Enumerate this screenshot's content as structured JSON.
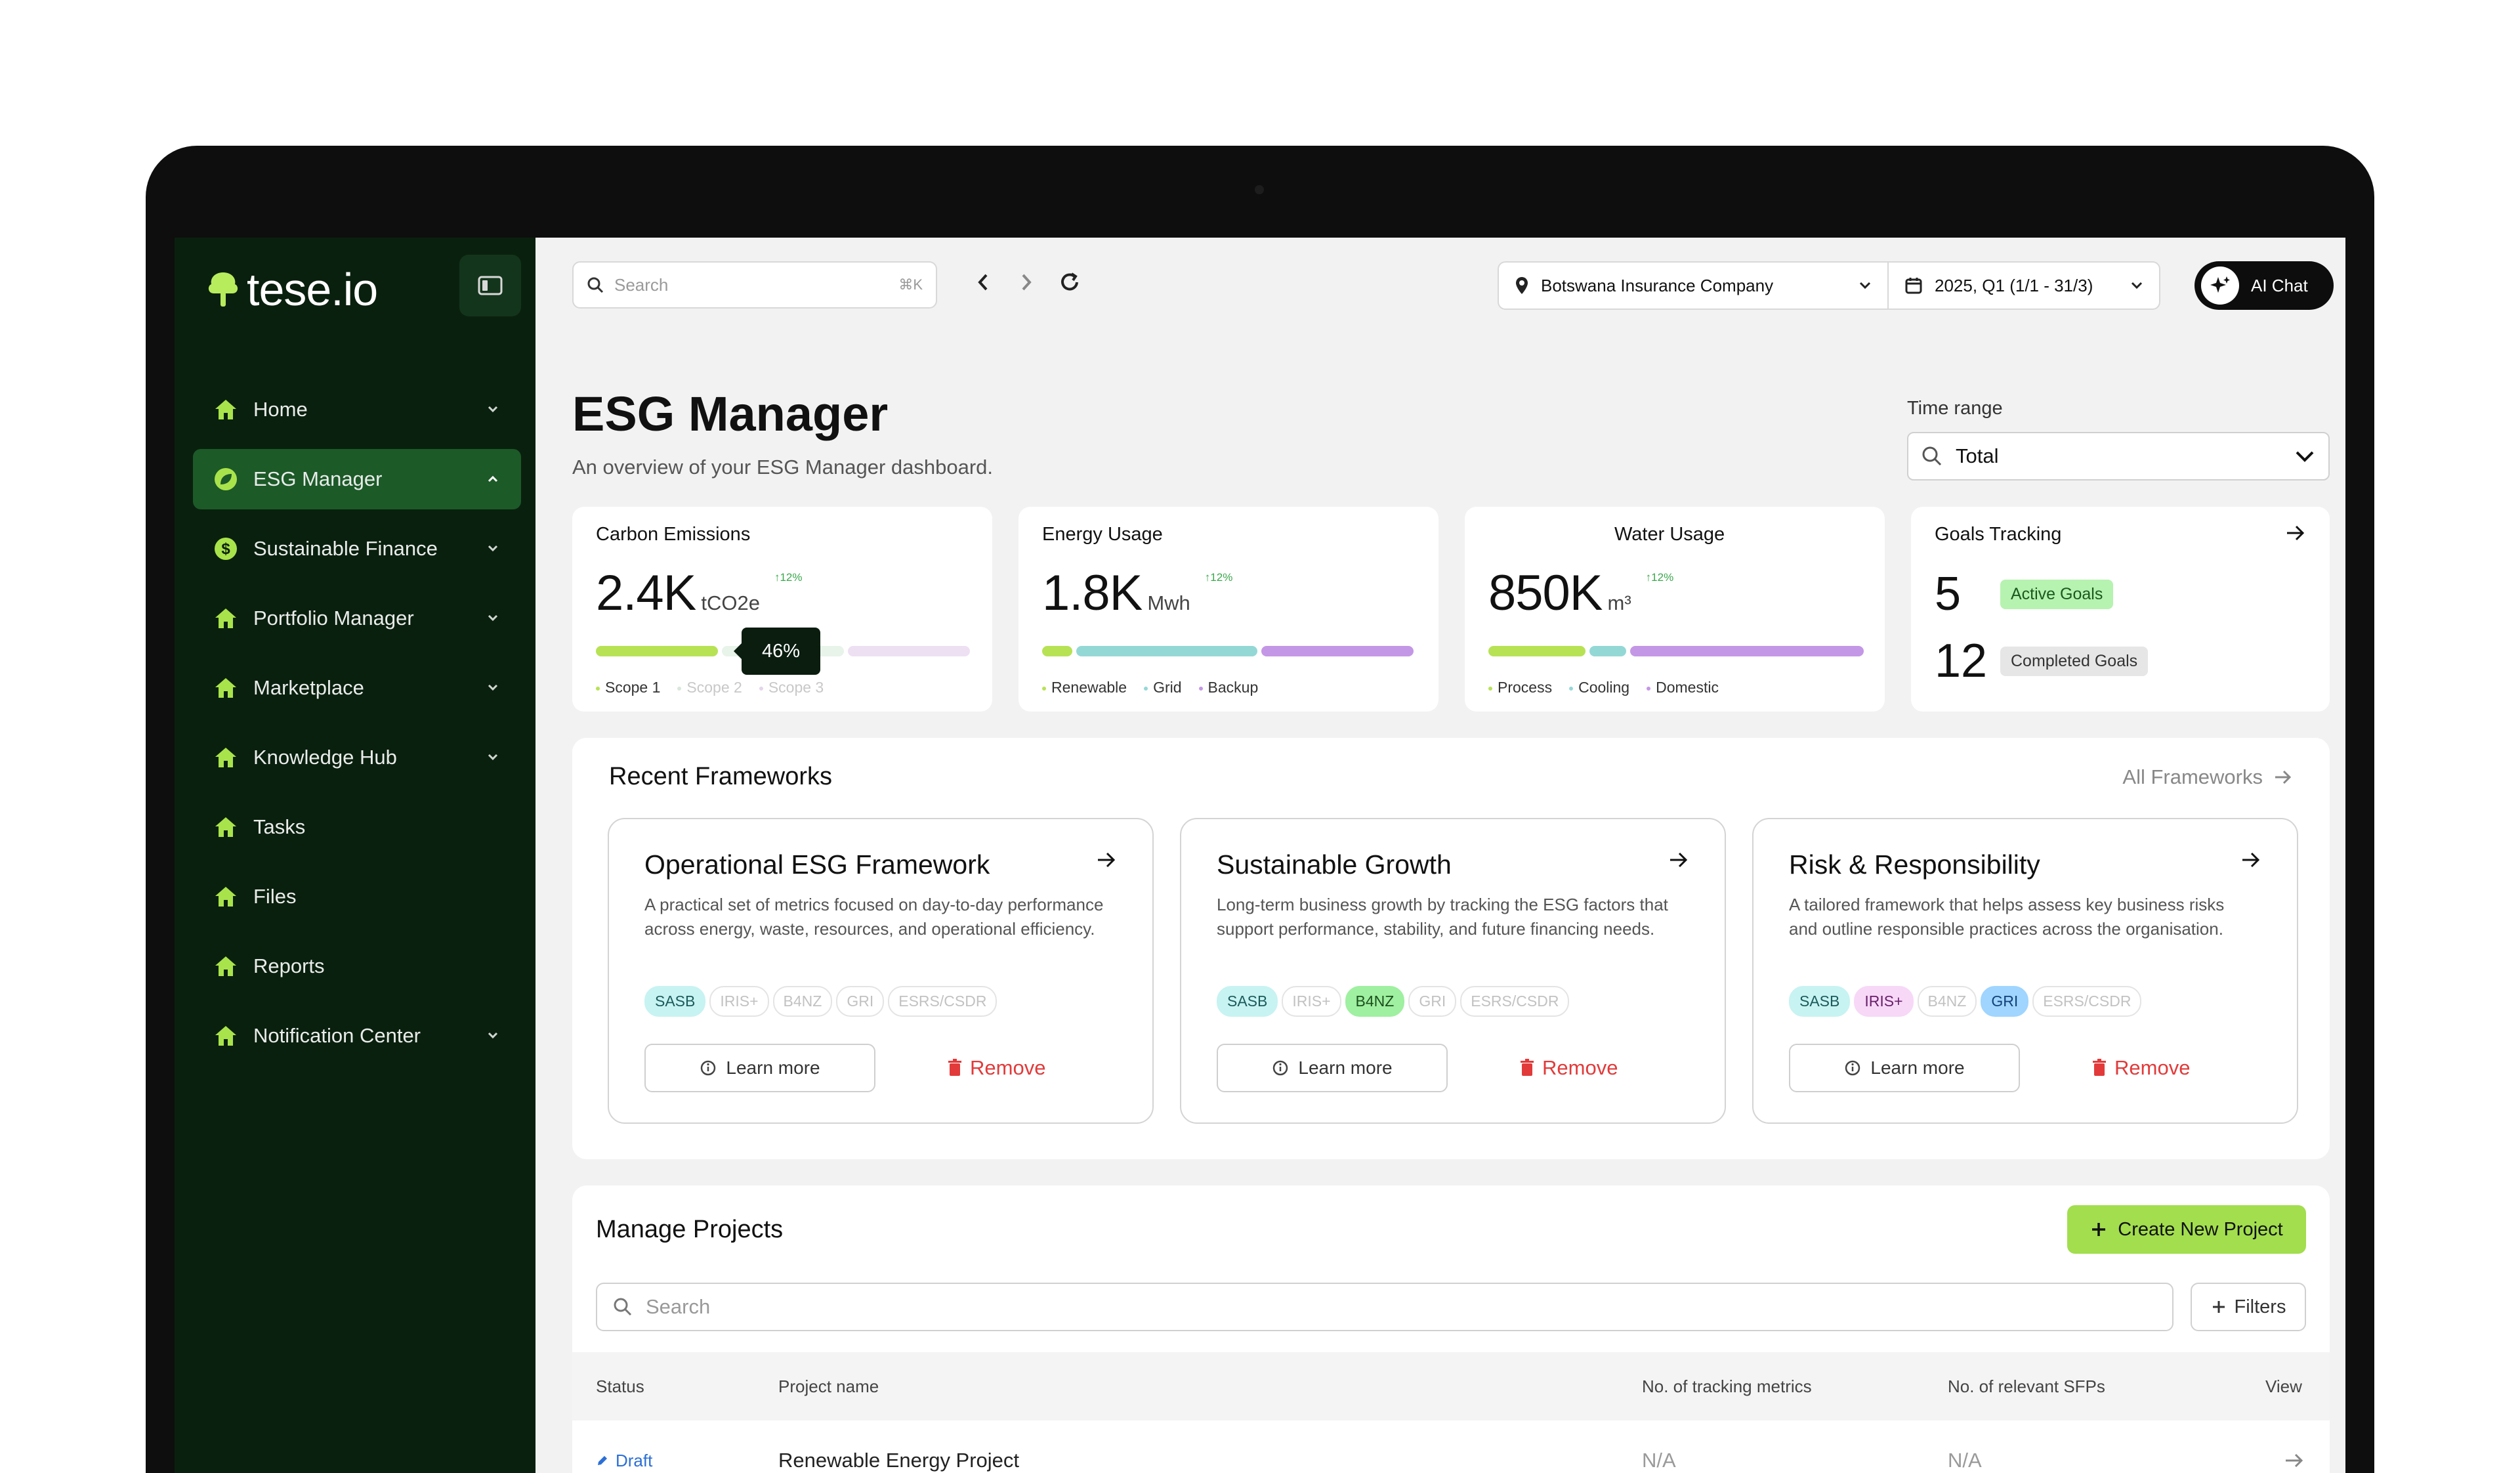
{
  "brand": {
    "name": "tese.io"
  },
  "sidebar": {
    "items": [
      {
        "label": "Home",
        "icon": "home-icon",
        "chevron": "down"
      },
      {
        "label": "ESG Manager",
        "icon": "leaf-icon",
        "chevron": "up",
        "active": true
      },
      {
        "label": "Sustainable Finance",
        "icon": "dollar-icon",
        "chevron": "down"
      },
      {
        "label": "Portfolio Manager",
        "icon": "home-icon",
        "chevron": "down"
      },
      {
        "label": "Marketplace",
        "icon": "home-icon",
        "chevron": "down"
      },
      {
        "label": "Knowledge Hub",
        "icon": "home-icon",
        "chevron": "down"
      },
      {
        "label": "Tasks",
        "icon": "home-icon"
      },
      {
        "label": "Files",
        "icon": "home-icon"
      },
      {
        "label": "Reports",
        "icon": "home-icon"
      },
      {
        "label": "Notification Center",
        "icon": "home-icon",
        "chevron": "down"
      }
    ]
  },
  "topbar": {
    "search_placeholder": "Search",
    "search_shortcut": "⌘K",
    "company": "Botswana Insurance Company",
    "period": "2025, Q1 (1/1 - 31/3)",
    "ai_chat": "AI Chat"
  },
  "page": {
    "title": "ESG Manager",
    "subtitle": "An overview of your ESG Manager dashboard.",
    "time_range_label": "Time range",
    "time_range_value": "Total"
  },
  "stats": {
    "carbon": {
      "title": "Carbon Emissions",
      "value": "2.4K",
      "unit": "tCO2e",
      "delta": "↑12%",
      "tooltip": "46%",
      "legend": [
        "Scope 1",
        "Scope 2",
        "Scope 3"
      ]
    },
    "energy": {
      "title": "Energy Usage",
      "value": "1.8K",
      "unit": "Mwh",
      "delta": "↑12%",
      "legend": [
        "Renewable",
        "Grid",
        "Backup"
      ]
    },
    "water": {
      "title": "Water Usage",
      "value": "850K",
      "unit": "m³",
      "delta": "↑12%",
      "legend": [
        "Process",
        "Cooling",
        "Domestic"
      ]
    },
    "goals": {
      "title": "Goals Tracking",
      "active_count": "5",
      "active_label": "Active Goals",
      "completed_count": "12",
      "completed_label": "Completed Goals"
    }
  },
  "frameworks": {
    "title": "Recent Frameworks",
    "all_link": "All Frameworks",
    "learn_more": "Learn more",
    "remove": "Remove",
    "tag_names": [
      "SASB",
      "IRIS+",
      "B4NZ",
      "GRI",
      "ESRS/CSDR"
    ],
    "cards": [
      {
        "title": "Operational ESG Framework",
        "desc": "A practical set of metrics focused on day-to-day performance across energy, waste, resources, and operational efficiency."
      },
      {
        "title": "Sustainable Growth",
        "desc": "Long-term business growth by tracking the ESG factors that support performance, stability, and future financing needs."
      },
      {
        "title": "Risk & Responsibility",
        "desc": "A tailored framework that helps assess key business risks and outline responsible practices across the organisation."
      }
    ]
  },
  "projects": {
    "title": "Manage Projects",
    "create_label": "Create New Project",
    "search_placeholder": "Search",
    "filters_label": "Filters",
    "columns": [
      "Status",
      "Project name",
      "No. of tracking metrics",
      "No. of relevant SFPs",
      "View"
    ],
    "rows": [
      {
        "status": "Draft",
        "name": "Renewable Energy Project",
        "metrics": "N/A",
        "sfps": "N/A"
      }
    ]
  }
}
